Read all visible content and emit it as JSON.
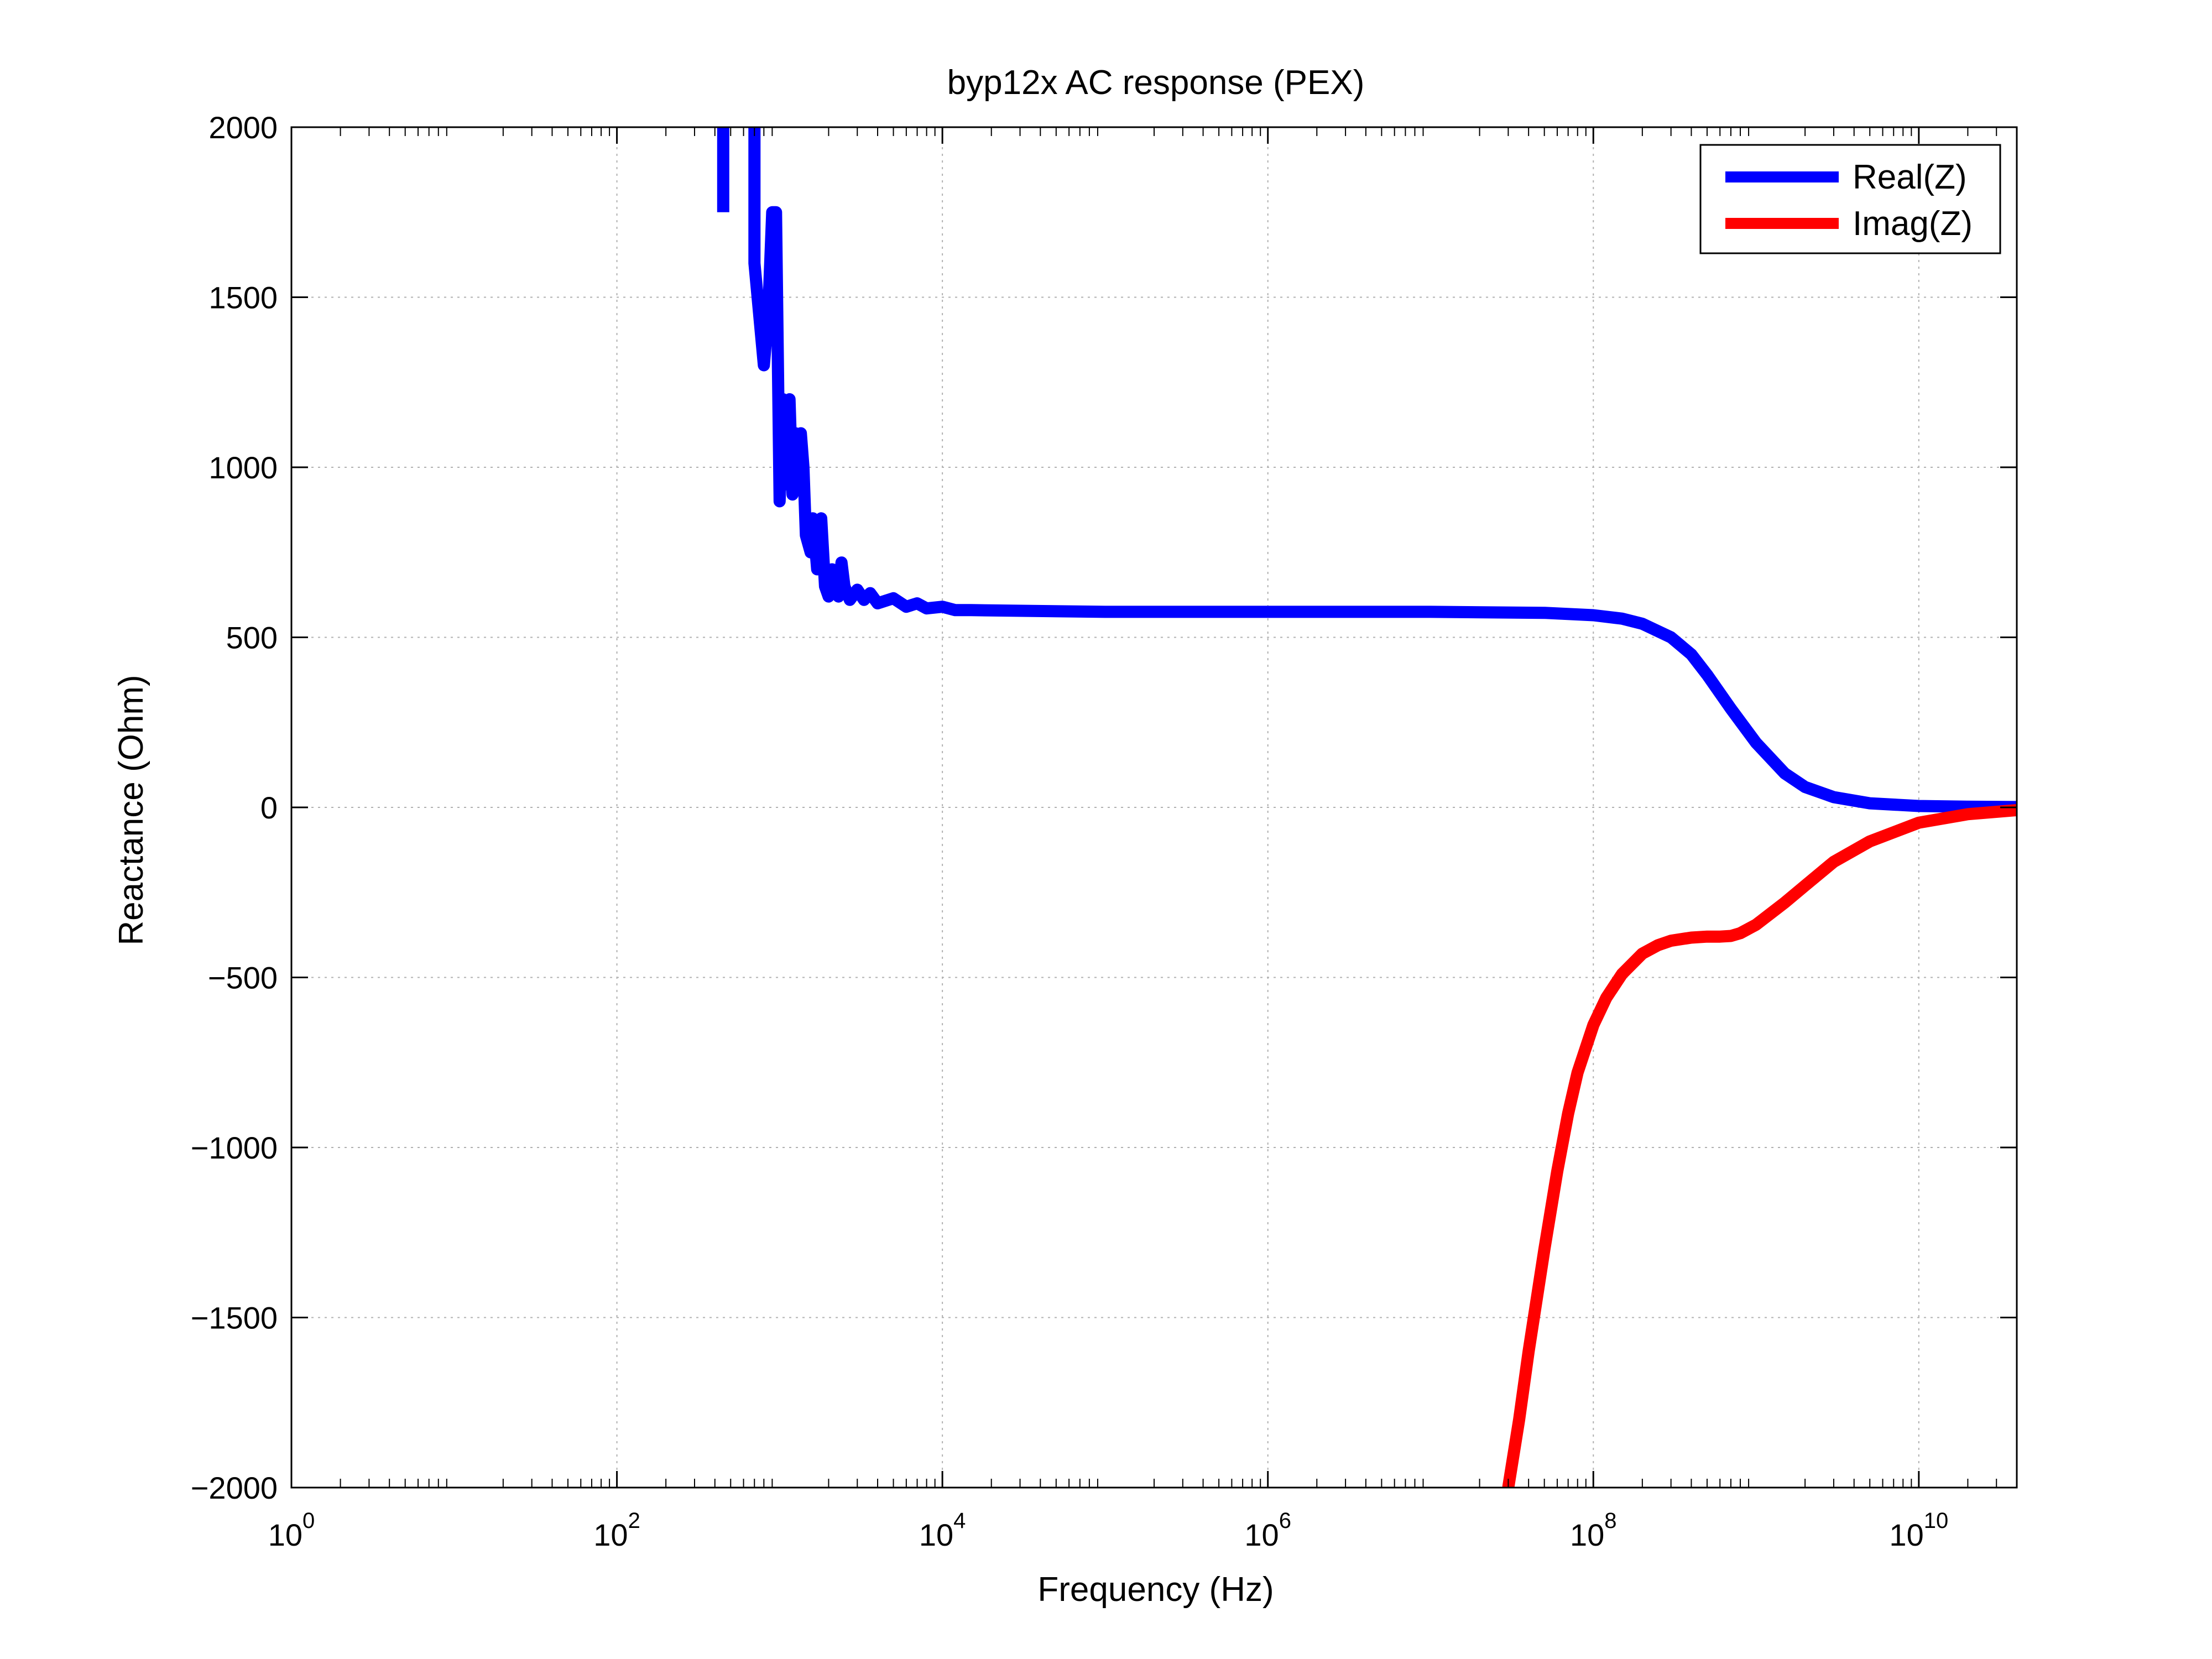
{
  "chart_data": {
    "type": "line",
    "title": "byp12x AC response (PEX)",
    "xlabel": "Frequency (Hz)",
    "ylabel": "Reactance (Ohm)",
    "xscale": "log",
    "xlim": [
      1,
      40000000000
    ],
    "ylim": [
      -2000,
      2000
    ],
    "grid": true,
    "legend_position": "top-right",
    "x_ticks": [
      {
        "value": 1,
        "base": "10",
        "exp": "0"
      },
      {
        "value": 100,
        "base": "10",
        "exp": "2"
      },
      {
        "value": 10000,
        "base": "10",
        "exp": "4"
      },
      {
        "value": 1000000,
        "base": "10",
        "exp": "6"
      },
      {
        "value": 100000000,
        "base": "10",
        "exp": "8"
      },
      {
        "value": 10000000000,
        "base": "10",
        "exp": "10"
      }
    ],
    "y_ticks": [
      {
        "value": 2000,
        "label": "2000"
      },
      {
        "value": 1500,
        "label": "1500"
      },
      {
        "value": 1000,
        "label": "1000"
      },
      {
        "value": 500,
        "label": "500"
      },
      {
        "value": 0,
        "label": "0"
      },
      {
        "value": -500,
        "label": "−500"
      },
      {
        "value": -1000,
        "label": "−1000"
      },
      {
        "value": -1500,
        "label": "−1500"
      },
      {
        "value": -2000,
        "label": "−2000"
      }
    ],
    "series": [
      {
        "name": "Real(Z)",
        "color": "#0000ff",
        "points": [
          [
            450,
            1750
          ],
          [
            450,
            2050
          ],
          [
            700,
            2050
          ],
          [
            700,
            1600
          ],
          [
            800,
            1300
          ],
          [
            850,
            1450
          ],
          [
            900,
            1750
          ],
          [
            950,
            1750
          ],
          [
            1000,
            900
          ],
          [
            1050,
            1200
          ],
          [
            1100,
            950
          ],
          [
            1150,
            1200
          ],
          [
            1200,
            920
          ],
          [
            1250,
            1100
          ],
          [
            1300,
            950
          ],
          [
            1350,
            1100
          ],
          [
            1400,
            1000
          ],
          [
            1450,
            800
          ],
          [
            1550,
            750
          ],
          [
            1600,
            850
          ],
          [
            1700,
            700
          ],
          [
            1800,
            850
          ],
          [
            1900,
            650
          ],
          [
            2000,
            620
          ],
          [
            2100,
            700
          ],
          [
            2200,
            680
          ],
          [
            2300,
            620
          ],
          [
            2400,
            720
          ],
          [
            2500,
            650
          ],
          [
            2700,
            610
          ],
          [
            3000,
            640
          ],
          [
            3300,
            610
          ],
          [
            3600,
            630
          ],
          [
            4000,
            600
          ],
          [
            5000,
            615
          ],
          [
            6000,
            590
          ],
          [
            7000,
            600
          ],
          [
            8000,
            585
          ],
          [
            10000,
            590
          ],
          [
            12000,
            580
          ],
          [
            15000,
            580
          ],
          [
            100000,
            575
          ],
          [
            1000000,
            575
          ],
          [
            10000000,
            575
          ],
          [
            50000000,
            572
          ],
          [
            100000000,
            565
          ],
          [
            150000000,
            555
          ],
          [
            200000000,
            540
          ],
          [
            300000000,
            500
          ],
          [
            400000000,
            450
          ],
          [
            500000000,
            390
          ],
          [
            700000000,
            290
          ],
          [
            1000000000,
            190
          ],
          [
            1500000000,
            100
          ],
          [
            2000000000,
            60
          ],
          [
            3000000000,
            30
          ],
          [
            5000000000,
            12
          ],
          [
            10000000000,
            4
          ],
          [
            20000000000,
            2
          ],
          [
            40000000000,
            1
          ]
        ]
      },
      {
        "name": "Imag(Z)",
        "color": "#ff0000",
        "points": [
          [
            30000000,
            -2000
          ],
          [
            35000000,
            -1800
          ],
          [
            40000000,
            -1600
          ],
          [
            50000000,
            -1300
          ],
          [
            60000000,
            -1070
          ],
          [
            70000000,
            -900
          ],
          [
            80000000,
            -780
          ],
          [
            100000000,
            -640
          ],
          [
            120000000,
            -560
          ],
          [
            150000000,
            -490
          ],
          [
            200000000,
            -430
          ],
          [
            250000000,
            -405
          ],
          [
            300000000,
            -392
          ],
          [
            400000000,
            -383
          ],
          [
            500000000,
            -380
          ],
          [
            600000000,
            -380
          ],
          [
            700000000,
            -378
          ],
          [
            800000000,
            -370
          ],
          [
            1000000000,
            -345
          ],
          [
            1500000000,
            -280
          ],
          [
            2000000000,
            -230
          ],
          [
            3000000000,
            -160
          ],
          [
            5000000000,
            -100
          ],
          [
            10000000000,
            -45
          ],
          [
            20000000000,
            -20
          ],
          [
            40000000000,
            -8
          ]
        ]
      }
    ]
  }
}
